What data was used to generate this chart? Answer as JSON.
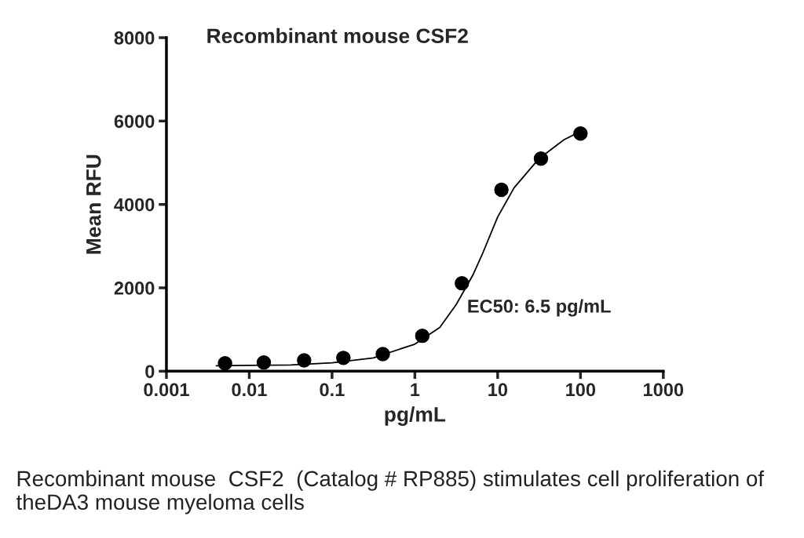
{
  "chart_data": {
    "type": "scatter",
    "title": "Recombinant mouse CSF2",
    "xlabel": "pg/mL",
    "ylabel": "Mean RFU",
    "log": "x",
    "xlim": [
      0.001,
      1000
    ],
    "xticks": [
      0.001,
      0.01,
      0.1,
      1,
      10,
      100,
      1000
    ],
    "ylim": [
      0,
      8000
    ],
    "yticks": [
      0,
      2000,
      4000,
      6000,
      8000
    ],
    "grid": false,
    "series": [
      {
        "color": "#000000",
        "marker": "circle",
        "x": [
          0.0051,
          0.015,
          0.046,
          0.137,
          0.41,
          1.23,
          3.7,
          11.1,
          33.3,
          100
        ],
        "values": [
          190,
          210,
          260,
          320,
          410,
          850,
          2110,
          4350,
          5100,
          5700
        ]
      },
      {
        "type": "line",
        "color": "#000000",
        "marker": "none",
        "line_style": "solid",
        "x": [
          0.004,
          0.01,
          0.0316,
          0.1,
          0.316,
          1,
          2,
          3.16,
          5,
          6.5,
          10,
          15.8,
          31.6,
          63,
          100
        ],
        "values": [
          130,
          140,
          150,
          200,
          320,
          650,
          1050,
          1600,
          2300,
          2800,
          3700,
          4400,
          5100,
          5550,
          5750
        ]
      }
    ],
    "annotations": [
      "EC50: 6.5 pg/mL",
      "Recombinant mouse  CSF2  (Catalog # RP885) stimulates cell proliferation of theDA3 mouse myeloma cells"
    ]
  }
}
